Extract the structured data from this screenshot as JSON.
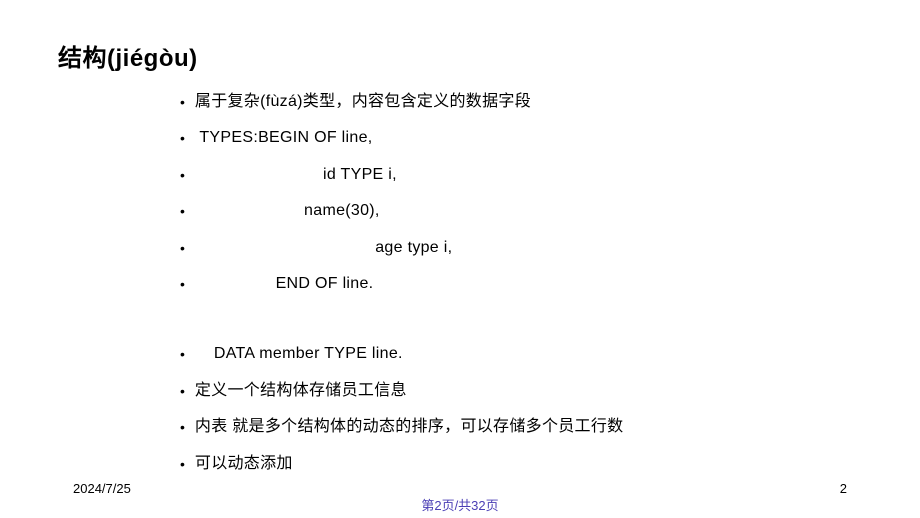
{
  "slide": {
    "title": "结构(jiégòu)",
    "bullets": [
      "属于复杂(fùzá)类型，内容包含定义的数据字段",
      " TYPES:BEGIN OF line,",
      "                           id TYPE i,",
      "                       name(30),",
      "                                      age type i,",
      "                 END OF line.",
      "__SPACER__",
      "    DATA member TYPE line.",
      "定义一个结构体存储员工信息",
      "内表 就是多个结构体的动态的排序，可以存储多个员工行数",
      "可以动态添加"
    ]
  },
  "footer": {
    "date": "2024/7/25",
    "pageNum": "2",
    "centerText": "第2页/共32页"
  },
  "style": {
    "title_fontsize": 24,
    "bullet_fontsize": 16,
    "footer_fontsize": 13,
    "text_color": "#000000",
    "link_color": "#4b3fb5",
    "background": "#ffffff"
  }
}
